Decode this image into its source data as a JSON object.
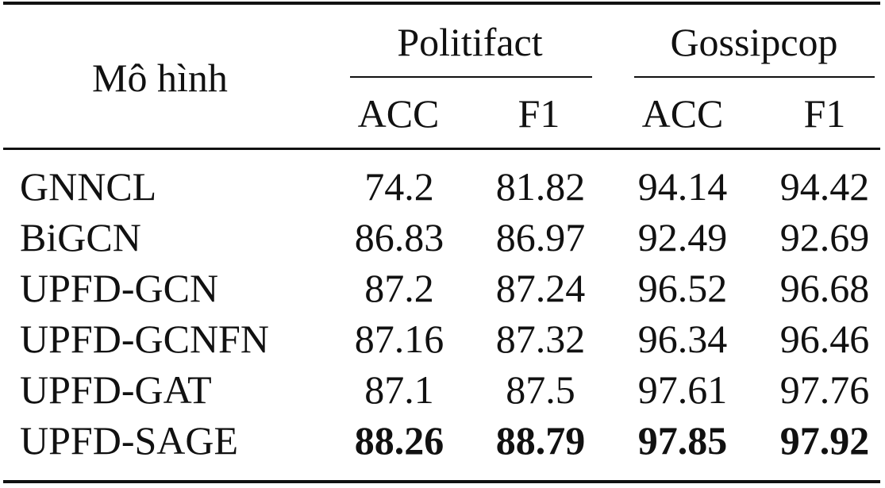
{
  "header": {
    "model": "Mô hình",
    "groups": [
      {
        "name": "Politifact",
        "metrics": [
          "ACC",
          "F1"
        ]
      },
      {
        "name": "Gossipcop",
        "metrics": [
          "ACC",
          "F1"
        ]
      }
    ]
  },
  "rows": [
    {
      "model": "GNNCL",
      "values": [
        "74.2",
        "81.82",
        "94.14",
        "94.42"
      ],
      "bold": false
    },
    {
      "model": "BiGCN",
      "values": [
        "86.83",
        "86.97",
        "92.49",
        "92.69"
      ],
      "bold": false
    },
    {
      "model": "UPFD-GCN",
      "values": [
        "87.2",
        "87.24",
        "96.52",
        "96.68"
      ],
      "bold": false
    },
    {
      "model": "UPFD-GCNFN",
      "values": [
        "87.16",
        "87.32",
        "96.34",
        "96.46"
      ],
      "bold": false
    },
    {
      "model": "UPFD-GAT",
      "values": [
        "87.1",
        "87.5",
        "97.61",
        "97.76"
      ],
      "bold": false
    },
    {
      "model": "UPFD-SAGE",
      "values": [
        "88.26",
        "88.79",
        "97.85",
        "97.92"
      ],
      "bold": true
    }
  ]
}
